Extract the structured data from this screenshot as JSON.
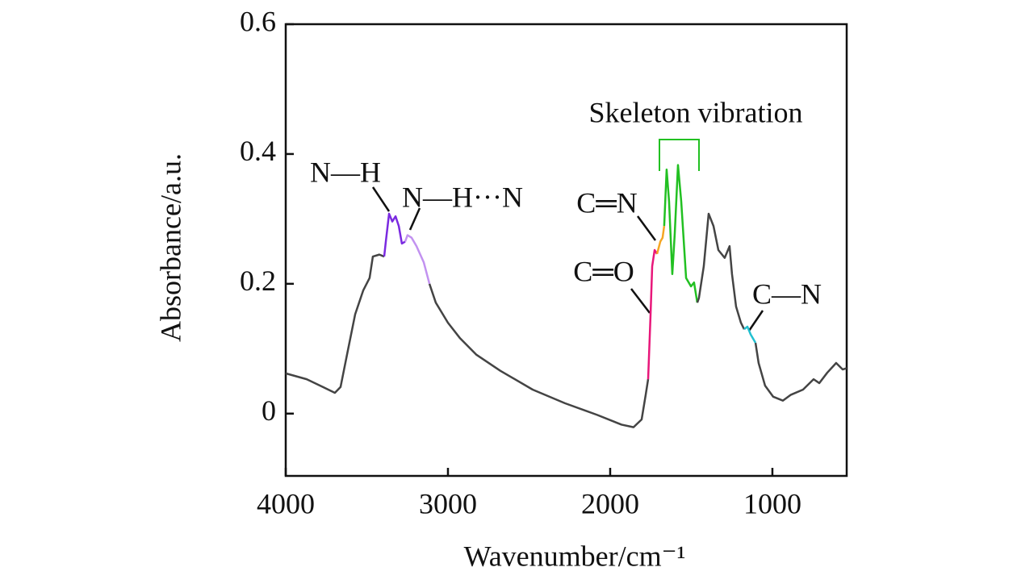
{
  "chart_data": {
    "type": "line",
    "x_label": "Wavenumber/cm⁻¹",
    "y_label": "Absorbance/a.u.",
    "xlim": [
      4000,
      542
    ],
    "ylim": [
      -0.096,
      0.6
    ],
    "xticks": [
      4000,
      3000,
      2000,
      1000
    ],
    "yticks": [
      0,
      0.2,
      0.4,
      0.6
    ],
    "annotations": [
      "N—H",
      "N—H···N",
      "C═N",
      "C═O",
      "C—N",
      "Skeleton vibration"
    ],
    "series": [
      {
        "color": "#444444",
        "x": [
          4000,
          3871,
          3771,
          3697,
          3662,
          3622,
          3572,
          3522,
          3483,
          3463,
          3423,
          3393
        ],
        "values": [
          0.062,
          0.053,
          0.041,
          0.032,
          0.041,
          0.091,
          0.153,
          0.19,
          0.209,
          0.242,
          0.245,
          0.242
        ]
      },
      {
        "color": "#7a2ae0",
        "x": [
          3393,
          3383,
          3363,
          3343,
          3323,
          3303,
          3284,
          3264
        ],
        "values": [
          0.242,
          0.265,
          0.308,
          0.296,
          0.304,
          0.289,
          0.262,
          0.265
        ]
      },
      {
        "color": "#c292f0",
        "x": [
          3264,
          3249,
          3224,
          3194,
          3149,
          3114
        ],
        "values": [
          0.265,
          0.275,
          0.271,
          0.258,
          0.233,
          0.2
        ]
      },
      {
        "color": "#444444",
        "x": [
          3114,
          3075,
          3000,
          2925,
          2826,
          2677,
          2478,
          2279,
          2080,
          1930,
          1856,
          1806,
          1781,
          1766
        ],
        "values": [
          0.2,
          0.171,
          0.14,
          0.116,
          0.091,
          0.066,
          0.037,
          0.016,
          -0.002,
          -0.017,
          -0.021,
          -0.009,
          0.029,
          0.053
        ]
      },
      {
        "color": "#e8177a",
        "x": [
          1766,
          1751,
          1741,
          1726,
          1711
        ],
        "values": [
          0.053,
          0.153,
          0.227,
          0.252,
          0.246
        ]
      },
      {
        "color": "#f5a623",
        "x": [
          1711,
          1691,
          1677,
          1667
        ],
        "values": [
          0.246,
          0.265,
          0.271,
          0.289
        ]
      },
      {
        "color": "#22c022",
        "x": [
          1667,
          1652,
          1637,
          1617,
          1602,
          1582,
          1562,
          1532,
          1502,
          1483,
          1463
        ],
        "values": [
          0.289,
          0.376,
          0.327,
          0.215,
          0.277,
          0.383,
          0.327,
          0.209,
          0.196,
          0.202,
          0.171
        ]
      },
      {
        "color": "#444444",
        "x": [
          1463,
          1453,
          1423,
          1393,
          1363,
          1333,
          1294,
          1264,
          1249,
          1224,
          1194,
          1174
        ],
        "values": [
          0.171,
          0.178,
          0.227,
          0.308,
          0.289,
          0.252,
          0.24,
          0.258,
          0.215,
          0.165,
          0.14,
          0.13
        ]
      },
      {
        "color": "#22c0d0",
        "x": [
          1174,
          1154,
          1134,
          1104
        ],
        "values": [
          0.13,
          0.134,
          0.122,
          0.109
        ]
      },
      {
        "color": "#444444",
        "x": [
          1104,
          1085,
          1045,
          995,
          935,
          886,
          811,
          746,
          711,
          662,
          607,
          567,
          542
        ],
        "values": [
          0.109,
          0.078,
          0.043,
          0.026,
          0.02,
          0.029,
          0.037,
          0.053,
          0.047,
          0.063,
          0.078,
          0.068,
          0.07
        ]
      }
    ]
  }
}
